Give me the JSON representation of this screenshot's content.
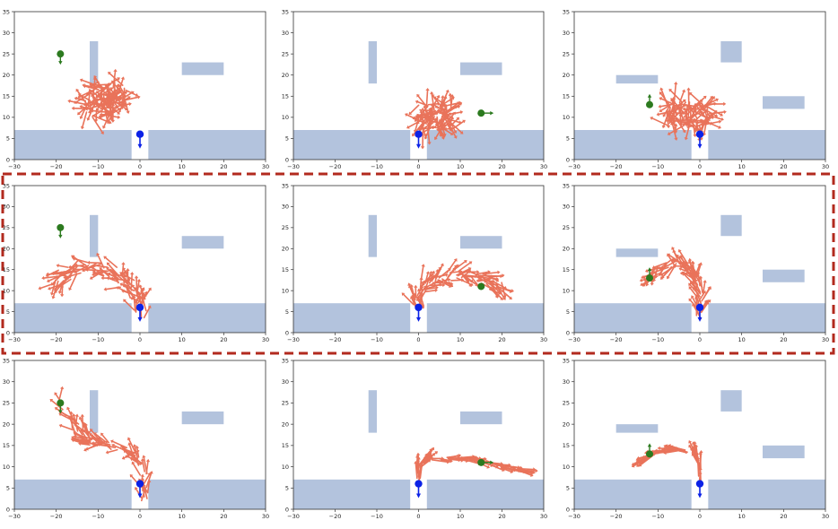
{
  "colors": {
    "obstacle": "#b3c3dd",
    "arrow": "#e9735a",
    "start": "#0c22e6",
    "goal": "#2c7a1f",
    "highlight": "#b22a1e"
  },
  "chart_data": [
    {
      "type": "scatter",
      "row": 0,
      "col": 0,
      "xlim": [
        -30,
        30
      ],
      "ylim": [
        0,
        35
      ],
      "xticks": [
        -30,
        -20,
        -10,
        0,
        10,
        20,
        30
      ],
      "yticks": [
        0,
        5,
        10,
        15,
        20,
        25,
        30,
        35
      ],
      "start": [
        0,
        6
      ],
      "goal": [
        -19,
        25
      ],
      "goal_dir": "down",
      "obstacles": [
        {
          "x0": -12,
          "x1": -10,
          "y0": 18,
          "y1": 28
        },
        {
          "x0": 10,
          "x1": 20,
          "y0": 20,
          "y1": 23
        }
      ],
      "field": {
        "style": "cloud",
        "center": [
          -8,
          14
        ],
        "spread": [
          5,
          4
        ],
        "count": 110
      }
    },
    {
      "type": "scatter",
      "row": 0,
      "col": 1,
      "xlim": [
        -30,
        30
      ],
      "ylim": [
        0,
        35
      ],
      "xticks": [
        -30,
        -20,
        -10,
        0,
        10,
        20,
        30
      ],
      "yticks": [
        0,
        5,
        10,
        15,
        20,
        25,
        30,
        35
      ],
      "start": [
        0,
        6
      ],
      "goal": [
        15,
        11
      ],
      "goal_dir": "right",
      "obstacles": [
        {
          "x0": -12,
          "x1": -10,
          "y0": 18,
          "y1": 28
        },
        {
          "x0": 10,
          "x1": 20,
          "y0": 20,
          "y1": 23
        }
      ],
      "field": {
        "style": "cloud",
        "center": [
          4,
          10
        ],
        "spread": [
          4,
          3
        ],
        "count": 90
      }
    },
    {
      "type": "scatter",
      "row": 0,
      "col": 2,
      "xlim": [
        -30,
        30
      ],
      "ylim": [
        0,
        35
      ],
      "xticks": [
        -30,
        -20,
        -10,
        0,
        10,
        20,
        30
      ],
      "yticks": [
        0,
        5,
        10,
        15,
        20,
        25,
        30,
        35
      ],
      "start": [
        0,
        6
      ],
      "goal": [
        -12,
        13
      ],
      "goal_dir": "up",
      "obstacles": [
        {
          "x0": -20,
          "x1": -10,
          "y0": 18,
          "y1": 20
        },
        {
          "x0": 5,
          "x1": 10,
          "y0": 23,
          "y1": 28
        },
        {
          "x0": 15,
          "x1": 25,
          "y0": 12,
          "y1": 15
        }
      ],
      "field": {
        "style": "cloud",
        "center": [
          -3,
          11
        ],
        "spread": [
          5,
          3
        ],
        "count": 100
      }
    },
    {
      "type": "scatter",
      "row": 1,
      "col": 0,
      "xlim": [
        -30,
        30
      ],
      "ylim": [
        0,
        35
      ],
      "xticks": [
        -30,
        -20,
        -10,
        0,
        10,
        20,
        30
      ],
      "yticks": [
        0,
        5,
        10,
        15,
        20,
        25,
        30,
        35
      ],
      "start": [
        0,
        6
      ],
      "goal": [
        -19,
        25
      ],
      "goal_dir": "down",
      "obstacles": [
        {
          "x0": -12,
          "x1": -10,
          "y0": 18,
          "y1": 28
        },
        {
          "x0": 10,
          "x1": 20,
          "y0": 20,
          "y1": 23
        }
      ],
      "field": {
        "style": "path",
        "path": [
          [
            0,
            4
          ],
          [
            0,
            8
          ],
          [
            -3,
            12
          ],
          [
            -8,
            15
          ],
          [
            -13,
            16
          ],
          [
            -18,
            14
          ],
          [
            -20,
            12
          ]
        ],
        "width": 3,
        "count": 100
      }
    },
    {
      "type": "scatter",
      "row": 1,
      "col": 1,
      "xlim": [
        -30,
        30
      ],
      "ylim": [
        0,
        35
      ],
      "xticks": [
        -30,
        -20,
        -10,
        0,
        10,
        20,
        30
      ],
      "yticks": [
        0,
        5,
        10,
        15,
        20,
        25,
        30,
        35
      ],
      "start": [
        0,
        6
      ],
      "goal": [
        15,
        11
      ],
      "goal_dir": "none",
      "obstacles": [
        {
          "x0": -12,
          "x1": -10,
          "y0": 18,
          "y1": 28
        },
        {
          "x0": 10,
          "x1": 20,
          "y0": 20,
          "y1": 23
        }
      ],
      "field": {
        "style": "path",
        "path": [
          [
            0,
            6
          ],
          [
            0,
            10
          ],
          [
            4,
            13
          ],
          [
            10,
            14
          ],
          [
            16,
            13
          ],
          [
            19,
            11
          ]
        ],
        "width": 2.5,
        "count": 90
      }
    },
    {
      "type": "scatter",
      "row": 1,
      "col": 2,
      "xlim": [
        -30,
        30
      ],
      "ylim": [
        0,
        35
      ],
      "xticks": [
        -30,
        -20,
        -10,
        0,
        10,
        20,
        30
      ],
      "yticks": [
        0,
        5,
        10,
        15,
        20,
        25,
        30,
        35
      ],
      "start": [
        0,
        6
      ],
      "goal": [
        -12,
        13
      ],
      "goal_dir": "up",
      "obstacles": [
        {
          "x0": -20,
          "x1": -10,
          "y0": 18,
          "y1": 20
        },
        {
          "x0": 5,
          "x1": 10,
          "y0": 23,
          "y1": 28
        },
        {
          "x0": 15,
          "x1": 25,
          "y0": 12,
          "y1": 15
        }
      ],
      "field": {
        "style": "path",
        "path": [
          [
            0,
            3
          ],
          [
            0,
            10
          ],
          [
            -2,
            15
          ],
          [
            -6,
            17
          ],
          [
            -10,
            15
          ],
          [
            -12,
            13
          ]
        ],
        "width": 2,
        "count": 80
      }
    },
    {
      "type": "scatter",
      "row": 2,
      "col": 0,
      "xlim": [
        -30,
        30
      ],
      "ylim": [
        0,
        35
      ],
      "xticks": [
        -30,
        -20,
        -10,
        0,
        10,
        20,
        30
      ],
      "yticks": [
        0,
        5,
        10,
        15,
        20,
        25,
        30,
        35
      ],
      "start": [
        0,
        6
      ],
      "goal": [
        -19,
        25
      ],
      "goal_dir": "down",
      "obstacles": [
        {
          "x0": -12,
          "x1": -10,
          "y0": 18,
          "y1": 28
        },
        {
          "x0": 10,
          "x1": 20,
          "y0": 20,
          "y1": 23
        }
      ],
      "field": {
        "style": "path",
        "path": [
          [
            1,
            1
          ],
          [
            1,
            8
          ],
          [
            -1,
            13
          ],
          [
            -7,
            15
          ],
          [
            -12,
            16
          ],
          [
            -16,
            20
          ],
          [
            -19,
            25
          ]
        ],
        "width": 1.8,
        "count": 80
      }
    },
    {
      "type": "scatter",
      "row": 2,
      "col": 1,
      "xlim": [
        -30,
        30
      ],
      "ylim": [
        0,
        35
      ],
      "xticks": [
        -30,
        -20,
        -10,
        0,
        10,
        20,
        30
      ],
      "yticks": [
        0,
        5,
        10,
        15,
        20,
        25,
        30,
        35
      ],
      "start": [
        0,
        6
      ],
      "goal": [
        15,
        11
      ],
      "goal_dir": "right",
      "obstacles": [
        {
          "x0": -12,
          "x1": -10,
          "y0": 18,
          "y1": 28
        },
        {
          "x0": 10,
          "x1": 20,
          "y0": 20,
          "y1": 23
        }
      ],
      "field": {
        "style": "path",
        "path": [
          [
            0,
            6
          ],
          [
            0,
            10
          ],
          [
            2,
            12
          ],
          [
            8,
            12
          ],
          [
            14,
            11.5
          ],
          [
            20,
            10
          ],
          [
            25,
            9
          ]
        ],
        "width": 0.8,
        "count": 70
      }
    },
    {
      "type": "scatter",
      "row": 2,
      "col": 2,
      "xlim": [
        -30,
        30
      ],
      "ylim": [
        0,
        35
      ],
      "xticks": [
        -30,
        -20,
        -10,
        0,
        10,
        20,
        30
      ],
      "yticks": [
        0,
        5,
        10,
        15,
        20,
        25,
        30,
        35
      ],
      "start": [
        0,
        6
      ],
      "goal": [
        -12,
        13
      ],
      "goal_dir": "up",
      "obstacles": [
        {
          "x0": -20,
          "x1": -10,
          "y0": 18,
          "y1": 20
        },
        {
          "x0": 5,
          "x1": 10,
          "y0": 23,
          "y1": 28
        },
        {
          "x0": 15,
          "x1": 25,
          "y0": 12,
          "y1": 15
        }
      ],
      "field": {
        "style": "path",
        "path": [
          [
            0,
            6
          ],
          [
            0,
            10
          ],
          [
            -1,
            13
          ],
          [
            -5,
            14
          ],
          [
            -10,
            13.5
          ],
          [
            -13,
            12
          ]
        ],
        "width": 0.6,
        "count": 60
      }
    }
  ]
}
